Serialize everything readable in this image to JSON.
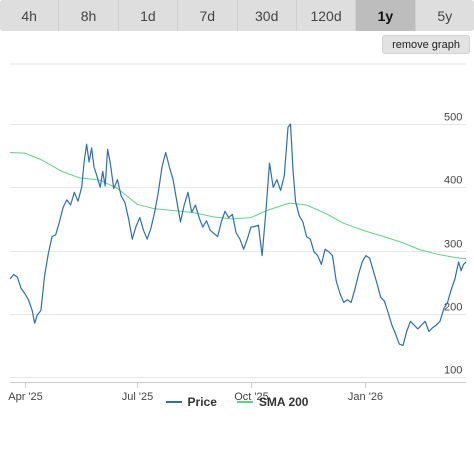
{
  "tabs": [
    {
      "label": "4h",
      "active": false
    },
    {
      "label": "8h",
      "active": false
    },
    {
      "label": "1d",
      "active": false
    },
    {
      "label": "7d",
      "active": false
    },
    {
      "label": "30d",
      "active": false
    },
    {
      "label": "120d",
      "active": false
    },
    {
      "label": "1y",
      "active": true
    },
    {
      "label": "5y",
      "active": false
    }
  ],
  "remove_graph_label": "remove graph",
  "legend": [
    {
      "label": "Price",
      "color": "#2f6fa8"
    },
    {
      "label": "SMA 200",
      "color": "#5ed28c"
    }
  ],
  "chart_data": {
    "type": "line",
    "title": "",
    "xlabel": "",
    "ylabel": "",
    "ylim": [
      100,
      500
    ],
    "yticks": [
      100,
      200,
      300,
      400,
      500
    ],
    "xticks": [
      {
        "label": "Apr '25",
        "x": "2025-04-01"
      },
      {
        "label": "Jul '25",
        "x": "2025-07-01"
      },
      {
        "label": "Oct '25",
        "x": "2025-10-01"
      },
      {
        "label": "Jan '26",
        "x": "2026-01-01"
      }
    ],
    "xrange": [
      "2025-03-20",
      "2026-03-24"
    ],
    "grid": true,
    "legend_position": "bottom",
    "series": [
      {
        "name": "Price",
        "color": "#2f6fa8",
        "points": [
          [
            "2025-03-20",
            255
          ],
          [
            "2025-03-23",
            262
          ],
          [
            "2025-03-26",
            258
          ],
          [
            "2025-03-29",
            240
          ],
          [
            "2025-04-01",
            232
          ],
          [
            "2025-04-04",
            222
          ],
          [
            "2025-04-07",
            205
          ],
          [
            "2025-04-09",
            185
          ],
          [
            "2025-04-11",
            198
          ],
          [
            "2025-04-14",
            205
          ],
          [
            "2025-04-17",
            260
          ],
          [
            "2025-04-20",
            295
          ],
          [
            "2025-04-23",
            322
          ],
          [
            "2025-04-26",
            325
          ],
          [
            "2025-04-29",
            345
          ],
          [
            "2025-05-02",
            368
          ],
          [
            "2025-05-05",
            380
          ],
          [
            "2025-05-08",
            372
          ],
          [
            "2025-05-11",
            392
          ],
          [
            "2025-05-14",
            378
          ],
          [
            "2025-05-17",
            400
          ],
          [
            "2025-05-19",
            440
          ],
          [
            "2025-05-21",
            468
          ],
          [
            "2025-05-23",
            440
          ],
          [
            "2025-05-25",
            462
          ],
          [
            "2025-05-27",
            432
          ],
          [
            "2025-05-29",
            420
          ],
          [
            "2025-06-01",
            400
          ],
          [
            "2025-06-03",
            425
          ],
          [
            "2025-06-05",
            402
          ],
          [
            "2025-06-07",
            460
          ],
          [
            "2025-06-09",
            440
          ],
          [
            "2025-06-12",
            398
          ],
          [
            "2025-06-15",
            412
          ],
          [
            "2025-06-18",
            386
          ],
          [
            "2025-06-21",
            376
          ],
          [
            "2025-06-24",
            350
          ],
          [
            "2025-06-27",
            318
          ],
          [
            "2025-06-30",
            338
          ],
          [
            "2025-07-03",
            352
          ],
          [
            "2025-07-06",
            332
          ],
          [
            "2025-07-09",
            318
          ],
          [
            "2025-07-12",
            335
          ],
          [
            "2025-07-15",
            360
          ],
          [
            "2025-07-18",
            392
          ],
          [
            "2025-07-21",
            432
          ],
          [
            "2025-07-24",
            455
          ],
          [
            "2025-07-27",
            432
          ],
          [
            "2025-07-30",
            412
          ],
          [
            "2025-08-02",
            378
          ],
          [
            "2025-08-05",
            345
          ],
          [
            "2025-08-08",
            372
          ],
          [
            "2025-08-11",
            392
          ],
          [
            "2025-08-14",
            360
          ],
          [
            "2025-08-17",
            372
          ],
          [
            "2025-08-20",
            352
          ],
          [
            "2025-08-23",
            337
          ],
          [
            "2025-08-26",
            347
          ],
          [
            "2025-08-29",
            332
          ],
          [
            "2025-09-01",
            327
          ],
          [
            "2025-09-04",
            322
          ],
          [
            "2025-09-07",
            345
          ],
          [
            "2025-09-10",
            362
          ],
          [
            "2025-09-13",
            352
          ],
          [
            "2025-09-16",
            357
          ],
          [
            "2025-09-19",
            328
          ],
          [
            "2025-09-22",
            318
          ],
          [
            "2025-09-25",
            302
          ],
          [
            "2025-09-28",
            318
          ],
          [
            "2025-10-01",
            337
          ],
          [
            "2025-10-04",
            338
          ],
          [
            "2025-10-07",
            340
          ],
          [
            "2025-10-10",
            292
          ],
          [
            "2025-10-13",
            360
          ],
          [
            "2025-10-16",
            438
          ],
          [
            "2025-10-19",
            400
          ],
          [
            "2025-10-22",
            412
          ],
          [
            "2025-10-25",
            395
          ],
          [
            "2025-10-28",
            418
          ],
          [
            "2025-10-31",
            495
          ],
          [
            "2025-11-02",
            500
          ],
          [
            "2025-11-04",
            428
          ],
          [
            "2025-11-06",
            378
          ],
          [
            "2025-11-09",
            355
          ],
          [
            "2025-11-12",
            345
          ],
          [
            "2025-11-15",
            322
          ],
          [
            "2025-11-18",
            318
          ],
          [
            "2025-11-21",
            298
          ],
          [
            "2025-11-24",
            292
          ],
          [
            "2025-11-27",
            278
          ],
          [
            "2025-11-30",
            302
          ],
          [
            "2025-12-03",
            298
          ],
          [
            "2025-12-06",
            292
          ],
          [
            "2025-12-09",
            252
          ],
          [
            "2025-12-12",
            232
          ],
          [
            "2025-12-15",
            218
          ],
          [
            "2025-12-18",
            222
          ],
          [
            "2025-12-21",
            218
          ],
          [
            "2025-12-24",
            238
          ],
          [
            "2025-12-27",
            262
          ],
          [
            "2025-12-30",
            282
          ],
          [
            "2026-01-02",
            292
          ],
          [
            "2026-01-05",
            288
          ],
          [
            "2026-01-08",
            268
          ],
          [
            "2026-01-11",
            248
          ],
          [
            "2026-01-14",
            226
          ],
          [
            "2026-01-17",
            220
          ],
          [
            "2026-01-20",
            202
          ],
          [
            "2026-01-23",
            182
          ],
          [
            "2026-01-26",
            168
          ],
          [
            "2026-01-29",
            152
          ],
          [
            "2026-02-01",
            150
          ],
          [
            "2026-02-04",
            172
          ],
          [
            "2026-02-07",
            188
          ],
          [
            "2026-02-10",
            182
          ],
          [
            "2026-02-13",
            176
          ],
          [
            "2026-02-16",
            182
          ],
          [
            "2026-02-19",
            188
          ],
          [
            "2026-02-22",
            172
          ],
          [
            "2026-02-25",
            178
          ],
          [
            "2026-02-28",
            182
          ],
          [
            "2026-03-03",
            188
          ],
          [
            "2026-03-06",
            208
          ],
          [
            "2026-03-09",
            218
          ],
          [
            "2026-03-12",
            238
          ],
          [
            "2026-03-15",
            255
          ],
          [
            "2026-03-18",
            282
          ],
          [
            "2026-03-20",
            268
          ],
          [
            "2026-03-22",
            278
          ],
          [
            "2026-03-24",
            282
          ]
        ]
      },
      {
        "name": "SMA 200",
        "color": "#5ed28c",
        "points": [
          [
            "2025-03-20",
            455
          ],
          [
            "2025-04-01",
            454
          ],
          [
            "2025-04-15",
            443
          ],
          [
            "2025-05-01",
            425
          ],
          [
            "2025-05-15",
            415
          ],
          [
            "2025-06-01",
            411
          ],
          [
            "2025-06-15",
            398
          ],
          [
            "2025-07-01",
            373
          ],
          [
            "2025-07-15",
            366
          ],
          [
            "2025-08-01",
            363
          ],
          [
            "2025-08-15",
            360
          ],
          [
            "2025-09-01",
            353
          ],
          [
            "2025-09-15",
            350
          ],
          [
            "2025-10-01",
            352
          ],
          [
            "2025-10-15",
            364
          ],
          [
            "2025-11-01",
            375
          ],
          [
            "2025-11-15",
            372
          ],
          [
            "2025-12-01",
            358
          ],
          [
            "2025-12-15",
            343
          ],
          [
            "2026-01-01",
            331
          ],
          [
            "2026-01-15",
            323
          ],
          [
            "2026-02-01",
            312
          ],
          [
            "2026-02-15",
            301
          ],
          [
            "2026-03-01",
            294
          ],
          [
            "2026-03-15",
            289
          ],
          [
            "2026-03-24",
            287
          ]
        ]
      }
    ]
  }
}
